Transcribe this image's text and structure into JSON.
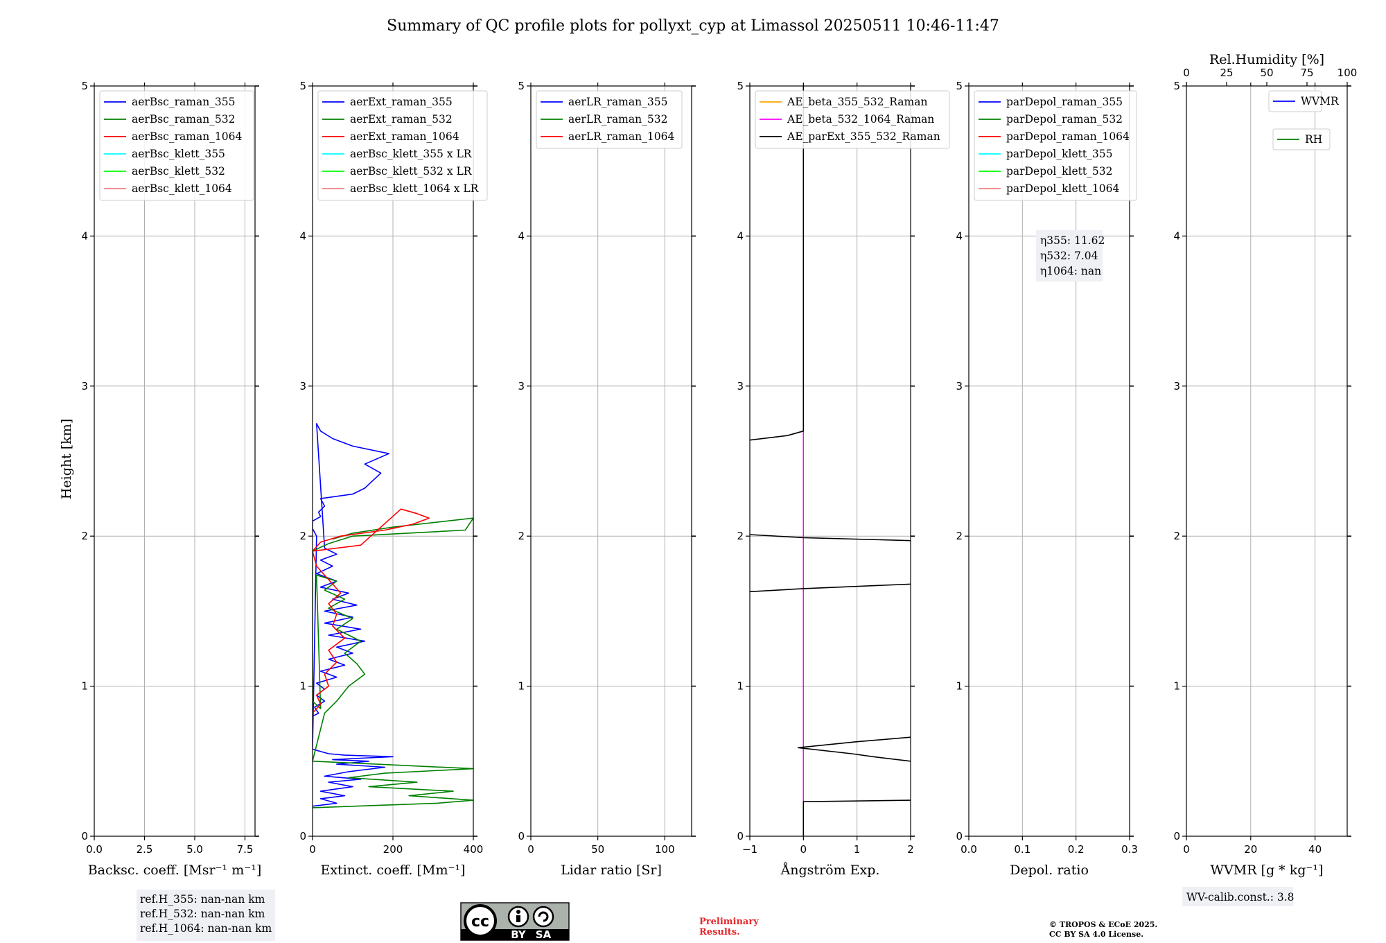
{
  "figure": {
    "title": "Summary of QC profile plots for pollyxt_cyp at Limassol 20250511 10:46-11:47",
    "ylabel": "Height [km]",
    "info_refH": [
      "ref.H_355: nan-nan km",
      "ref.H_532: nan-nan km",
      "ref.H_1064: nan-nan km"
    ],
    "info_eta": [
      "η355: 11.62",
      "η532: 7.04",
      "η1064: nan"
    ],
    "info_wv": "WV-calib.const.: 3.8",
    "license_by": "BY",
    "license_sa": "SA",
    "preliminary": [
      "Preliminary",
      "Results."
    ],
    "copyright": [
      "© TROPOS & ECoE 2025.",
      "CC BY SA 4.0 License."
    ],
    "colors": {
      "blue": "#0000ff",
      "green": "#008000",
      "red": "#ff0000",
      "cyan": "#00ffff",
      "lime": "#00ff00",
      "salmon": "#f08080",
      "orange": "#ffa500",
      "magenta": "#ff00ff",
      "black": "#000000"
    }
  },
  "chart_data": [
    {
      "type": "line",
      "id": "bsc",
      "xlabel": "Backsc. coeff. [Msr⁻¹ m⁻¹]",
      "xlim": [
        0,
        8
      ],
      "ylim": [
        0,
        5
      ],
      "xticks": [
        "0.0",
        "2.5",
        "5.0",
        "7.5"
      ],
      "xtick_values": [
        0,
        2.5,
        5,
        7.5
      ],
      "yticks": [
        "0",
        "1",
        "2",
        "3",
        "4",
        "5"
      ],
      "legend": [
        {
          "name": "aerBsc_raman_355",
          "color": "#0000ff"
        },
        {
          "name": "aerBsc_raman_532",
          "color": "#008000"
        },
        {
          "name": "aerBsc_raman_1064",
          "color": "#ff0000"
        },
        {
          "name": "aerBsc_klett_355",
          "color": "#00ffff"
        },
        {
          "name": "aerBsc_klett_532",
          "color": "#00ff00"
        },
        {
          "name": "aerBsc_klett_1064",
          "color": "#f08080"
        }
      ],
      "series": []
    },
    {
      "type": "line",
      "id": "ext",
      "xlabel": "Extinct. coeff. [Mm⁻¹]",
      "xlim": [
        0,
        400
      ],
      "ylim": [
        0,
        5
      ],
      "xticks": [
        "0",
        "200",
        "400"
      ],
      "xtick_values": [
        0,
        200,
        400
      ],
      "yticks": [
        "0",
        "1",
        "2",
        "3",
        "4",
        "5"
      ],
      "legend": [
        {
          "name": "aerExt_raman_355",
          "color": "#0000ff"
        },
        {
          "name": "aerExt_raman_532",
          "color": "#008000"
        },
        {
          "name": "aerExt_raman_1064",
          "color": "#ff0000"
        },
        {
          "name": "aerBsc_klett_355 x LR",
          "color": "#00ffff"
        },
        {
          "name": "aerBsc_klett_532 x LR",
          "color": "#00ff00"
        },
        {
          "name": "aerBsc_klett_1064 x LR",
          "color": "#f08080"
        }
      ],
      "series": [
        {
          "name": "aerExt_raman_355",
          "color": "#0000ff",
          "x": [
            0,
            60,
            20,
            80,
            20,
            100,
            40,
            120,
            30,
            90,
            180,
            60,
            140,
            50,
            120,
            200,
            80,
            40,
            0,
            10,
            0,
            0,
            20,
            15,
            30,
            20,
            100,
            130,
            150,
            170,
            130,
            190,
            100,
            50,
            20,
            10,
            30,
            60,
            20,
            50,
            10,
            60,
            20,
            90,
            50,
            110,
            30,
            100,
            30,
            120,
            40,
            130,
            60,
            100,
            40,
            80,
            20,
            60,
            10,
            30,
            10,
            30,
            5,
            15,
            0
          ],
          "y": [
            0.2,
            0.22,
            0.25,
            0.27,
            0.3,
            0.33,
            0.36,
            0.38,
            0.4,
            0.43,
            0.46,
            0.48,
            0.5,
            0.51,
            0.52,
            0.53,
            0.54,
            0.55,
            0.58,
            2.0,
            2.05,
            2.1,
            2.13,
            2.16,
            2.2,
            2.25,
            2.28,
            2.32,
            2.37,
            2.42,
            2.48,
            2.55,
            2.6,
            2.65,
            2.7,
            2.75,
            1.92,
            1.88,
            1.84,
            1.8,
            1.75,
            1.7,
            1.66,
            1.62,
            1.58,
            1.54,
            1.5,
            1.46,
            1.42,
            1.38,
            1.34,
            1.3,
            1.26,
            1.22,
            1.18,
            1.14,
            1.1,
            1.06,
            1.02,
            0.98,
            0.94,
            0.9,
            0.86,
            0.82,
            0.8
          ]
        },
        {
          "name": "aerExt_raman_532",
          "color": "#008000",
          "x": [
            0,
            310,
            400,
            240,
            350,
            140,
            260,
            90,
            180,
            400,
            160,
            0,
            30,
            60,
            90,
            130,
            110,
            80,
            120,
            60,
            100,
            40,
            80,
            30,
            60,
            10,
            20,
            0,
            0,
            40,
            100,
            380,
            400,
            200,
            100,
            50
          ],
          "y": [
            0.19,
            0.22,
            0.24,
            0.27,
            0.3,
            0.33,
            0.36,
            0.39,
            0.42,
            0.45,
            0.48,
            0.5,
            0.82,
            0.9,
            1.0,
            1.08,
            1.15,
            1.22,
            1.3,
            1.38,
            1.45,
            1.52,
            1.58,
            1.64,
            1.7,
            1.74,
            0.85,
            0.9,
            1.9,
            1.95,
            2.0,
            2.04,
            2.12,
            2.06,
            2.02,
            1.98
          ]
        },
        {
          "name": "aerExt_raman_1064",
          "color": "#ff0000",
          "x": [
            0,
            20,
            10,
            40,
            30,
            60,
            40,
            80,
            50,
            60,
            40,
            70,
            50,
            30,
            10,
            0,
            20,
            70,
            180,
            250,
            290,
            260,
            220,
            120,
            0
          ],
          "y": [
            0.82,
            0.88,
            0.94,
            1.0,
            1.08,
            1.16,
            1.24,
            1.32,
            1.4,
            1.48,
            1.55,
            1.62,
            1.68,
            1.74,
            1.8,
            1.9,
            1.96,
            2.0,
            2.04,
            2.08,
            2.12,
            2.15,
            2.18,
            1.94,
            1.9
          ]
        }
      ]
    },
    {
      "type": "line",
      "id": "lr",
      "xlabel": "Lidar ratio [Sr]",
      "xlim": [
        0,
        120
      ],
      "ylim": [
        0,
        5
      ],
      "xticks": [
        "0",
        "50",
        "100"
      ],
      "xtick_values": [
        0,
        50,
        100
      ],
      "yticks": [
        "0",
        "1",
        "2",
        "3",
        "4",
        "5"
      ],
      "legend": [
        {
          "name": "aerLR_raman_355",
          "color": "#0000ff"
        },
        {
          "name": "aerLR_raman_532",
          "color": "#008000"
        },
        {
          "name": "aerLR_raman_1064",
          "color": "#ff0000"
        }
      ],
      "series": []
    },
    {
      "type": "line",
      "id": "ae",
      "xlabel": "Ångström Exp.",
      "xlim": [
        -1,
        2
      ],
      "ylim": [
        0,
        5
      ],
      "xticks": [
        "−1",
        "0",
        "1",
        "2"
      ],
      "xtick_values": [
        -1,
        0,
        1,
        2
      ],
      "yticks": [
        "0",
        "1",
        "2",
        "3",
        "4",
        "5"
      ],
      "legend": [
        {
          "name": "AE_beta_355_532_Raman",
          "color": "#ffa500"
        },
        {
          "name": "AE_beta_532_1064_Raman",
          "color": "#ff00ff"
        },
        {
          "name": "AE_parExt_355_532_Raman",
          "color": "#000000"
        }
      ],
      "series": [
        {
          "name": "AE_beta_532_1064_Raman",
          "color": "#ff00ff",
          "x": [
            0,
            0
          ],
          "y": [
            0.23,
            2.7
          ]
        },
        {
          "name": "AE_parExt_355_532_Raman",
          "color": "#000000",
          "segments": [
            {
              "x": [
                2.0,
                0.0,
                0.0
              ],
              "y": [
                0.24,
                0.23,
                0.0
              ]
            },
            {
              "x": [
                2.0,
                1.3,
                0.9,
                -0.1,
                1.0,
                2.0
              ],
              "y": [
                0.5,
                0.53,
                0.55,
                0.59,
                0.63,
                0.66
              ]
            },
            {
              "x": [
                -1.0,
                0.0,
                2.0
              ],
              "y": [
                1.63,
                1.65,
                1.68
              ]
            },
            {
              "x": [
                -1.0,
                0.0,
                2.0
              ],
              "y": [
                2.01,
                1.99,
                1.97
              ]
            },
            {
              "x": [
                -1.0,
                -0.3,
                0.0,
                0.0
              ],
              "y": [
                2.64,
                2.67,
                2.7,
                5.0
              ]
            }
          ]
        }
      ]
    },
    {
      "type": "line",
      "id": "depol",
      "xlabel": "Depol. ratio",
      "xlim": [
        0,
        0.3
      ],
      "ylim": [
        0,
        5
      ],
      "xticks": [
        "0.0",
        "0.1",
        "0.2",
        "0.3"
      ],
      "xtick_values": [
        0,
        0.1,
        0.2,
        0.3
      ],
      "yticks": [
        "0",
        "1",
        "2",
        "3",
        "4",
        "5"
      ],
      "legend": [
        {
          "name": "parDepol_raman_355",
          "color": "#0000ff"
        },
        {
          "name": "parDepol_raman_532",
          "color": "#008000"
        },
        {
          "name": "parDepol_raman_1064",
          "color": "#ff0000"
        },
        {
          "name": "parDepol_klett_355",
          "color": "#00ffff"
        },
        {
          "name": "parDepol_klett_532",
          "color": "#00ff00"
        },
        {
          "name": "parDepol_klett_1064",
          "color": "#f08080"
        }
      ],
      "series": []
    },
    {
      "type": "line",
      "id": "wvmr",
      "xlabel": "WVMR [g * kg⁻¹]",
      "top_xlabel": "Rel.Humidity [%]",
      "xlim": [
        0,
        50
      ],
      "top_xlim": [
        0,
        100
      ],
      "ylim": [
        0,
        5
      ],
      "xticks": [
        "0",
        "20",
        "40"
      ],
      "xtick_values": [
        0,
        20,
        40
      ],
      "top_xticks": [
        "0",
        "25",
        "50",
        "75",
        "100"
      ],
      "top_xtick_values": [
        0,
        25,
        50,
        75,
        100
      ],
      "yticks": [
        "0",
        "1",
        "2",
        "3",
        "4",
        "5"
      ],
      "legend": [
        {
          "name": "WVMR",
          "color": "#0000ff"
        },
        {
          "name": "RH",
          "color": "#008000"
        }
      ],
      "series": []
    }
  ]
}
